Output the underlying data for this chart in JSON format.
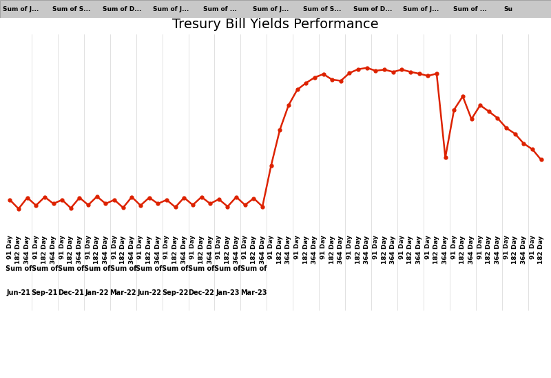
{
  "title": "Tresury Bill Yields Performance",
  "title_fontsize": 14,
  "line_color": "#dd2200",
  "marker_size": 3.5,
  "background_color": "#ffffff",
  "header_bg": "#c8c8c8",
  "header_text_color": "#000000",
  "header_labels": [
    "Sum of J...",
    "Sum of S...",
    "Sum of D...",
    "Sum of J...",
    "Sum of ...",
    "Sum of J...",
    "Sum of S...",
    "Sum of D...",
    "Sum of J...",
    "Sum of ...",
    "Su"
  ],
  "group_labels_line1": [
    "Sum of",
    "Sum of",
    "Sum of",
    "Sum of",
    "Sum of",
    "Sum of",
    "Sum of",
    "Sum of",
    "Sum of",
    "Sum of",
    ""
  ],
  "group_labels_line2": [
    "Jun-21",
    "Sep-21",
    "Dec-21",
    "Jan-22",
    "Mar-22",
    "Jun-22",
    "Sep-22",
    "Dec-22",
    "Jan-23",
    "Mar-23",
    ""
  ],
  "sub_labels": [
    "91 Day",
    "182 Day",
    "364 Day"
  ],
  "y_values": [
    1.55,
    1.15,
    1.65,
    1.3,
    1.68,
    1.38,
    1.55,
    1.18,
    1.65,
    1.32,
    1.7,
    1.38,
    1.55,
    1.2,
    1.68,
    1.3,
    1.65,
    1.38,
    1.55,
    1.22,
    1.65,
    1.32,
    1.68,
    1.38,
    1.58,
    1.25,
    1.68,
    1.32,
    1.62,
    1.25,
    3.1,
    4.7,
    5.8,
    6.5,
    6.8,
    7.05,
    7.2,
    6.95,
    6.9,
    7.25,
    7.42,
    7.48,
    7.35,
    7.4,
    7.3,
    7.4,
    7.3,
    7.22,
    7.12,
    7.22,
    3.45,
    5.6,
    6.2,
    5.18,
    5.8,
    5.52,
    5.22,
    4.78,
    4.52,
    4.08,
    3.82,
    3.35
  ],
  "ylim": [
    0,
    9
  ],
  "figsize": [
    8.0,
    5.5
  ],
  "dpi": 100
}
